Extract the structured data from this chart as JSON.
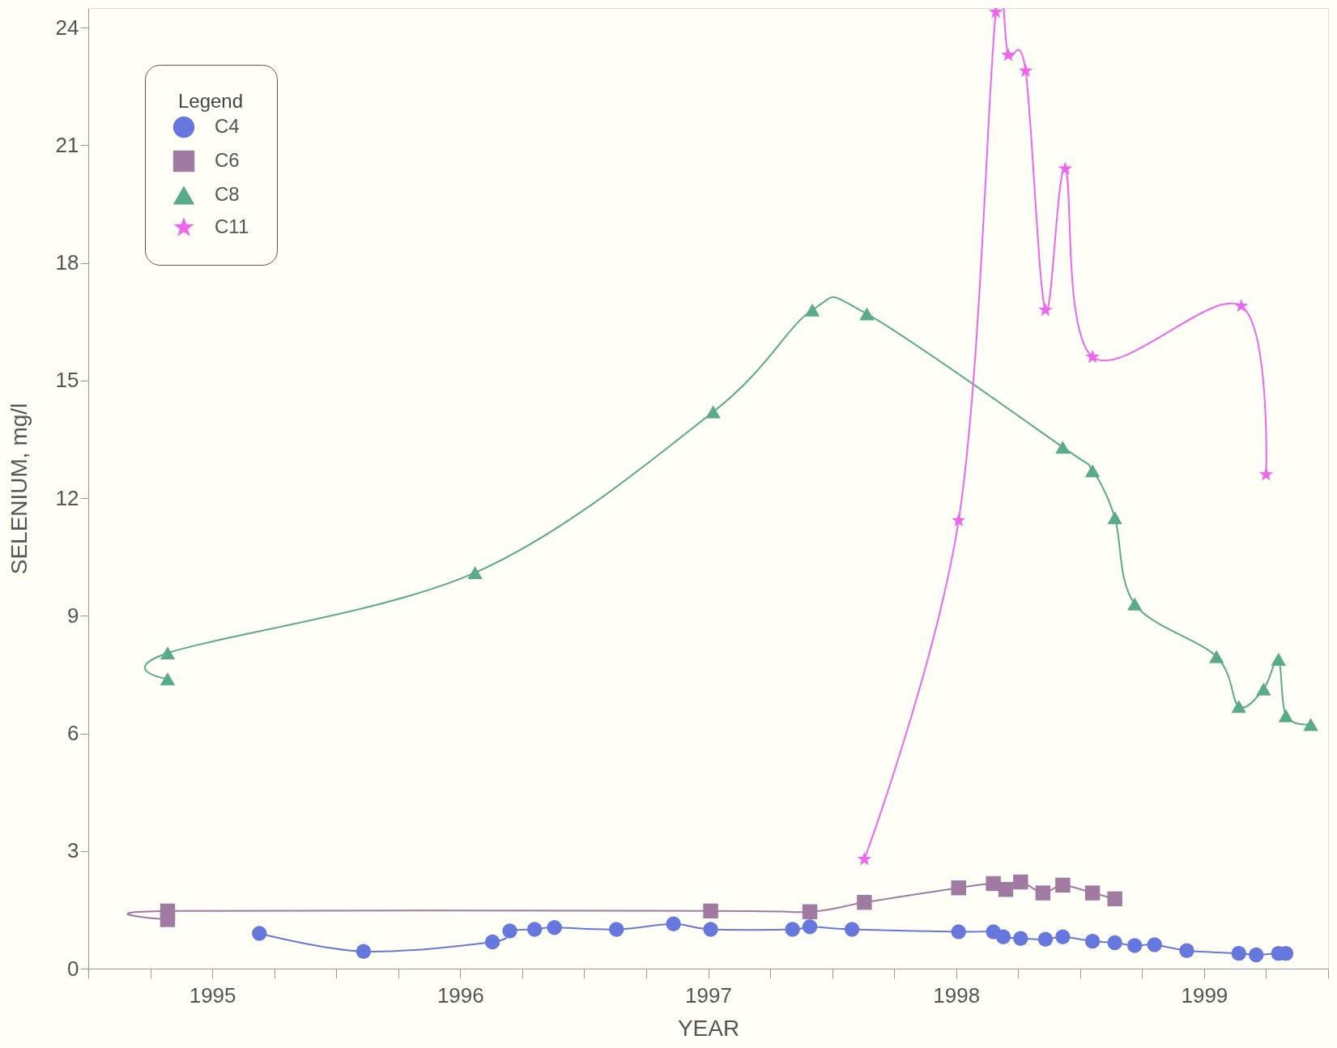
{
  "chart_data": {
    "type": "line",
    "xlabel": "YEAR",
    "ylabel": "SELENIUM, mg/l",
    "legend_title": "Legend",
    "legend": "top left",
    "grid": false,
    "line_style": "solid",
    "xlim": [
      1995,
      2000
    ],
    "ylim": [
      0,
      24.5
    ],
    "xticks": [
      {
        "value": 1995,
        "label": null
      },
      {
        "value": 1995.25,
        "label": null
      },
      {
        "value": 1995.5,
        "label": "1995"
      },
      {
        "value": 1995.75,
        "label": null
      },
      {
        "value": 1996,
        "label": null
      },
      {
        "value": 1996.25,
        "label": null
      },
      {
        "value": 1996.5,
        "label": "1996"
      },
      {
        "value": 1996.75,
        "label": null
      },
      {
        "value": 1997,
        "label": null
      },
      {
        "value": 1997.25,
        "label": null
      },
      {
        "value": 1997.5,
        "label": "1997"
      },
      {
        "value": 1997.75,
        "label": null
      },
      {
        "value": 1998,
        "label": null
      },
      {
        "value": 1998.25,
        "label": null
      },
      {
        "value": 1998.5,
        "label": "1998"
      },
      {
        "value": 1998.75,
        "label": null
      },
      {
        "value": 1999,
        "label": null
      },
      {
        "value": 1999.25,
        "label": null
      },
      {
        "value": 1999.5,
        "label": "1999"
      },
      {
        "value": 1999.75,
        "label": null
      },
      {
        "value": 2000,
        "label": null
      }
    ],
    "yticks": [
      0,
      3,
      6,
      9,
      12,
      15,
      18,
      21,
      24
    ],
    "series": [
      {
        "name": "C4",
        "color": "#6677dd",
        "marker": "circle",
        "x": [
          1995.69,
          1996.11,
          1996.63,
          1996.7,
          1996.8,
          1996.88,
          1997.13,
          1997.36,
          1997.51,
          1997.84,
          1997.91,
          1998.08,
          1998.51,
          1998.65,
          1998.69,
          1998.76,
          1998.86,
          1998.93,
          1999.05,
          1999.14,
          1999.22,
          1999.3,
          1999.43,
          1999.64,
          1999.71,
          1999.8,
          1999.83
        ],
        "values": [
          0.9,
          0.44,
          0.68,
          0.96,
          1.0,
          1.05,
          1.0,
          1.14,
          1.0,
          1.0,
          1.07,
          1.0,
          0.94,
          0.94,
          0.81,
          0.77,
          0.75,
          0.81,
          0.7,
          0.66,
          0.59,
          0.61,
          0.46,
          0.39,
          0.35,
          0.39,
          0.39
        ]
      },
      {
        "name": "C6",
        "color": "#a07aa0",
        "marker": "square",
        "x": [
          1995.32,
          1995.32,
          1997.51,
          1997.91,
          1998.13,
          1998.51,
          1998.65,
          1998.7,
          1998.76,
          1998.85,
          1998.93,
          1999.05,
          1999.14
        ],
        "values": [
          1.25,
          1.47,
          1.47,
          1.45,
          1.69,
          2.06,
          2.17,
          2.02,
          2.21,
          1.93,
          2.13,
          1.93,
          1.78
        ]
      },
      {
        "name": "C8",
        "color": "#5aab8a",
        "marker": "triangle",
        "x": [
          1995.32,
          1995.32,
          1996.56,
          1997.52,
          1997.92,
          1998.14,
          1998.93,
          1999.05,
          1999.14,
          1999.22,
          1999.55,
          1999.64,
          1999.74,
          1999.8,
          1999.83,
          1999.93
        ],
        "values": [
          7.39,
          8.05,
          10.1,
          14.2,
          16.8,
          16.7,
          13.3,
          12.7,
          11.5,
          9.3,
          7.96,
          6.69,
          7.13,
          7.89,
          6.45,
          6.23
        ]
      },
      {
        "name": "C11",
        "color": "#ee66ee",
        "marker": "star",
        "x": [
          1998.13,
          1998.51,
          1998.66,
          1998.71,
          1998.78,
          1998.86,
          1998.94,
          1999.05,
          1999.65,
          1999.75
        ],
        "values": [
          2.79,
          11.43,
          24.4,
          23.3,
          22.9,
          16.8,
          20.4,
          15.6,
          16.9,
          12.6
        ]
      }
    ]
  }
}
